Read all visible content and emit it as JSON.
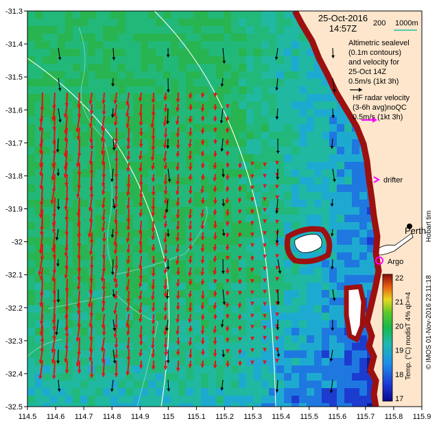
{
  "map": {
    "date": "25-Oct-2016",
    "time": "14:57Z",
    "scale_label_1": "200",
    "scale_label_2": "1000m",
    "altimetric_lines": [
      "Altimetric sealevel",
      "(0.1m contours)",
      "and velocity for",
      "25-Oct 14Z",
      "0.5m/s (1kt 3h)"
    ],
    "hf_lines": [
      "HF radar velocity",
      "(3-6h avg)noQC",
      "0.5m/s (1kt 3h)"
    ],
    "drifter_label": "drifter",
    "perth_label": "Perth",
    "argo_label": "Argo",
    "hobart_label": "Hobart tim",
    "credit": "© IMOS 01-Nov-2016 23:11:18",
    "colorbar_title": "Temp. (°C) modisT 4% ql>=4",
    "x_ticks": [
      "114.5",
      "114.6",
      "114.7",
      "114.8",
      "114.9",
      "115",
      "115.1",
      "115.2",
      "115.3",
      "115.4",
      "115.5",
      "115.6",
      "115.7",
      "115.8",
      "115.9"
    ],
    "y_ticks": [
      "-31.3",
      "-31.4",
      "-31.5",
      "-31.6",
      "-31.7",
      "-31.8",
      "-31.9",
      "-32",
      "-32.1",
      "-32.2",
      "-32.3",
      "-32.4",
      "-32.5"
    ],
    "colorbar_ticks": [
      "22",
      "21",
      "20",
      "19",
      "18",
      "17"
    ],
    "colors": {
      "hf_arrow": "#e81010",
      "alt_arrow": "#000000",
      "contour": "#ffffff",
      "depth_contour": "#7fd8c8",
      "land": "#fde6cc",
      "drifter": "#ff00ff",
      "argo": "#ff00ff"
    }
  }
}
